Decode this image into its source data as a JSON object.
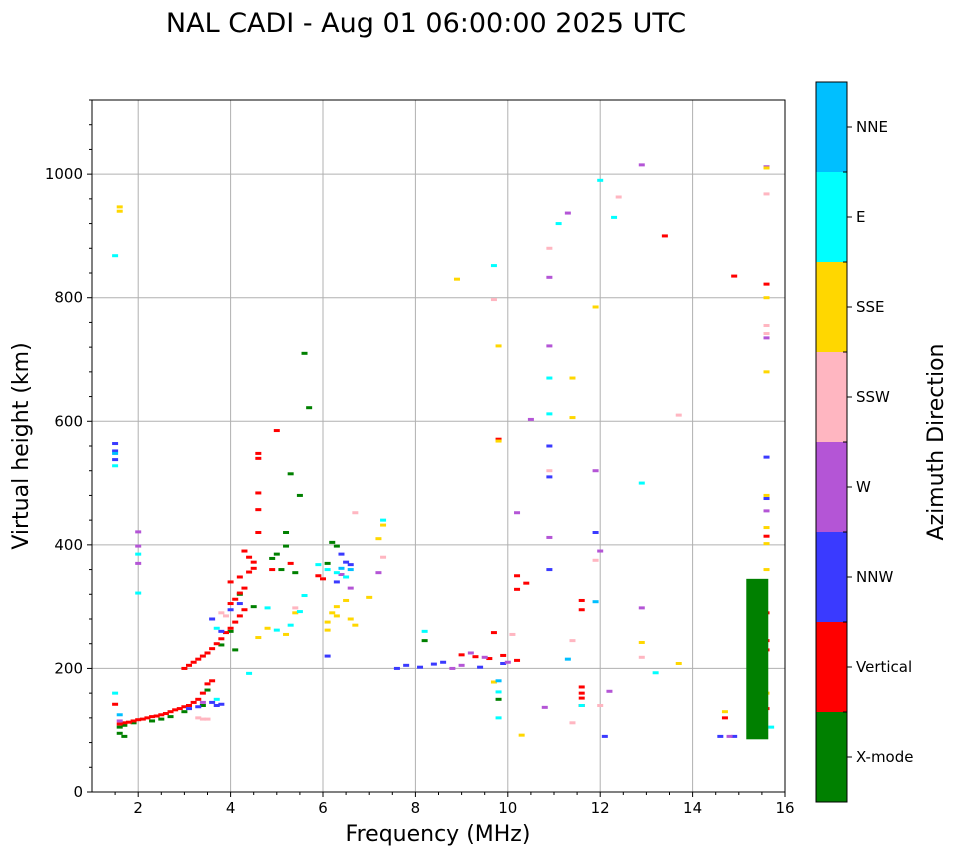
{
  "chart_data": {
    "type": "scatter",
    "title": "NAL CADI - Aug 01 06:00:00 2025 UTC",
    "xlabel": "Frequency (MHz)",
    "ylabel": "Virtual height (km)",
    "xlim": [
      1,
      16
    ],
    "ylim": [
      0,
      1120
    ],
    "xticks": [
      "2",
      "4",
      "6",
      "8",
      "10",
      "12",
      "14",
      "16"
    ],
    "yticks": [
      "0",
      "200",
      "400",
      "600",
      "800",
      "1000"
    ],
    "grid": true,
    "colorbar": {
      "label": "Azimuth Direction",
      "categories": [
        "X-mode",
        "Vertical",
        "NNW",
        "W",
        "SSW",
        "SSE",
        "E",
        "NNE"
      ],
      "colors": [
        "#008000",
        "#ff0000",
        "#3a3aff",
        "#b455d6",
        "#ffb6c1",
        "#ffd700",
        "#00ffff",
        "#00bfff"
      ]
    },
    "series": [
      {
        "name": "X-mode",
        "points": [
          [
            5.6,
            710
          ],
          [
            5.7,
            622
          ],
          [
            5.3,
            515
          ],
          [
            5.5,
            480
          ],
          [
            5.2,
            420
          ],
          [
            5.2,
            398
          ],
          [
            5.0,
            385
          ],
          [
            4.9,
            378
          ],
          [
            5.1,
            360
          ],
          [
            5.4,
            355
          ],
          [
            6.2,
            404
          ],
          [
            6.3,
            398
          ],
          [
            6.1,
            370
          ],
          [
            4.2,
            320
          ],
          [
            4.5,
            300
          ],
          [
            4.0,
            260
          ],
          [
            3.8,
            238
          ],
          [
            4.1,
            230
          ],
          [
            3.5,
            165
          ],
          [
            3.4,
            140
          ],
          [
            3.0,
            130
          ],
          [
            2.7,
            122
          ],
          [
            2.5,
            118
          ],
          [
            2.3,
            115
          ],
          [
            1.9,
            112
          ],
          [
            1.7,
            108
          ],
          [
            1.6,
            105
          ],
          [
            1.6,
            95
          ],
          [
            1.7,
            90
          ],
          [
            8.2,
            245
          ],
          [
            9.8,
            150
          ]
        ]
      },
      {
        "name": "Vertical",
        "points": [
          [
            1.5,
            142
          ],
          [
            1.6,
            110
          ],
          [
            1.7,
            112
          ],
          [
            1.8,
            113
          ],
          [
            1.9,
            115
          ],
          [
            2.0,
            117
          ],
          [
            2.1,
            118
          ],
          [
            2.2,
            120
          ],
          [
            2.3,
            122
          ],
          [
            2.4,
            123
          ],
          [
            2.5,
            125
          ],
          [
            2.6,
            127
          ],
          [
            2.7,
            130
          ],
          [
            2.8,
            133
          ],
          [
            2.9,
            135
          ],
          [
            3.0,
            138
          ],
          [
            3.1,
            140
          ],
          [
            3.2,
            145
          ],
          [
            3.3,
            150
          ],
          [
            3.4,
            160
          ],
          [
            3.5,
            175
          ],
          [
            3.6,
            180
          ],
          [
            3.0,
            200
          ],
          [
            3.1,
            205
          ],
          [
            3.2,
            210
          ],
          [
            3.3,
            215
          ],
          [
            3.4,
            220
          ],
          [
            3.5,
            225
          ],
          [
            3.6,
            232
          ],
          [
            3.7,
            240
          ],
          [
            3.8,
            248
          ],
          [
            3.9,
            258
          ],
          [
            4.0,
            265
          ],
          [
            4.1,
            275
          ],
          [
            4.2,
            285
          ],
          [
            4.3,
            295
          ],
          [
            4.0,
            305
          ],
          [
            4.1,
            312
          ],
          [
            4.2,
            322
          ],
          [
            4.3,
            330
          ],
          [
            4.0,
            340
          ],
          [
            4.2,
            348
          ],
          [
            4.4,
            356
          ],
          [
            4.5,
            362
          ],
          [
            4.5,
            372
          ],
          [
            4.4,
            380
          ],
          [
            4.3,
            390
          ],
          [
            4.6,
            420
          ],
          [
            4.6,
            457
          ],
          [
            4.6,
            484
          ],
          [
            4.6,
            540
          ],
          [
            4.6,
            548
          ],
          [
            5.0,
            585
          ],
          [
            4.9,
            360
          ],
          [
            5.3,
            370
          ],
          [
            5.9,
            350
          ],
          [
            6.0,
            345
          ],
          [
            9.0,
            222
          ],
          [
            9.3,
            219
          ],
          [
            9.6,
            216
          ],
          [
            9.9,
            221
          ],
          [
            9.7,
            258
          ],
          [
            10.2,
            328
          ],
          [
            10.4,
            338
          ],
          [
            10.2,
            350
          ],
          [
            10.2,
            213
          ],
          [
            11.6,
            140
          ],
          [
            11.6,
            152
          ],
          [
            11.6,
            160
          ],
          [
            11.6,
            170
          ],
          [
            11.6,
            295
          ],
          [
            11.6,
            310
          ],
          [
            13.4,
            900
          ],
          [
            14.9,
            835
          ],
          [
            14.7,
            120
          ],
          [
            15.6,
            822
          ],
          [
            15.6,
            414
          ],
          [
            15.6,
            290
          ],
          [
            15.6,
            245
          ],
          [
            15.6,
            230
          ],
          [
            15.6,
            135
          ],
          [
            9.8,
            571
          ]
        ]
      },
      {
        "name": "NNW",
        "points": [
          [
            1.5,
            564
          ],
          [
            1.5,
            552
          ],
          [
            1.5,
            538
          ],
          [
            4.0,
            295
          ],
          [
            4.2,
            305
          ],
          [
            3.8,
            260
          ],
          [
            3.6,
            280
          ],
          [
            3.6,
            145
          ],
          [
            3.7,
            140
          ],
          [
            3.8,
            142
          ],
          [
            3.3,
            138
          ],
          [
            3.1,
            135
          ],
          [
            6.4,
            385
          ],
          [
            6.5,
            372
          ],
          [
            6.6,
            368
          ],
          [
            6.3,
            340
          ],
          [
            7.6,
            200
          ],
          [
            7.8,
            205
          ],
          [
            8.1,
            202
          ],
          [
            8.4,
            207
          ],
          [
            8.6,
            210
          ],
          [
            9.4,
            202
          ],
          [
            9.9,
            208
          ],
          [
            10.9,
            360
          ],
          [
            10.9,
            510
          ],
          [
            10.9,
            560
          ],
          [
            11.9,
            420
          ],
          [
            12.1,
            90
          ],
          [
            14.6,
            90
          ],
          [
            14.9,
            90
          ],
          [
            15.3,
            90
          ],
          [
            15.6,
            542
          ],
          [
            15.6,
            475
          ],
          [
            6.1,
            220
          ]
        ]
      },
      {
        "name": "W",
        "points": [
          [
            2.0,
            421
          ],
          [
            2.0,
            398
          ],
          [
            2.0,
            370
          ],
          [
            1.6,
            115
          ],
          [
            3.4,
            145
          ],
          [
            6.4,
            352
          ],
          [
            6.6,
            330
          ],
          [
            7.2,
            355
          ],
          [
            8.8,
            200
          ],
          [
            9.0,
            205
          ],
          [
            9.2,
            225
          ],
          [
            9.5,
            218
          ],
          [
            10.0,
            210
          ],
          [
            10.2,
            452
          ],
          [
            10.5,
            603
          ],
          [
            10.9,
            722
          ],
          [
            10.9,
            833
          ],
          [
            10.9,
            412
          ],
          [
            10.8,
            137
          ],
          [
            11.3,
            937
          ],
          [
            11.9,
            520
          ],
          [
            12.0,
            390
          ],
          [
            12.2,
            163
          ],
          [
            12.9,
            298
          ],
          [
            12.9,
            1015
          ],
          [
            15.6,
            1012
          ],
          [
            15.6,
            735
          ],
          [
            15.6,
            455
          ],
          [
            14.8,
            90
          ]
        ]
      },
      {
        "name": "SSW",
        "points": [
          [
            3.3,
            120
          ],
          [
            3.4,
            118
          ],
          [
            3.5,
            118
          ],
          [
            3.8,
            290
          ],
          [
            3.9,
            285
          ],
          [
            5.4,
            298
          ],
          [
            6.7,
            452
          ],
          [
            7.3,
            380
          ],
          [
            10.1,
            255
          ],
          [
            10.9,
            880
          ],
          [
            10.9,
            520
          ],
          [
            11.4,
            112
          ],
          [
            11.4,
            245
          ],
          [
            11.9,
            375
          ],
          [
            12.0,
            140
          ],
          [
            12.4,
            963
          ],
          [
            12.9,
            218
          ],
          [
            13.7,
            610
          ],
          [
            15.6,
            968
          ],
          [
            15.6,
            755
          ],
          [
            15.6,
            742
          ],
          [
            9.7,
            797
          ]
        ]
      },
      {
        "name": "SSE",
        "points": [
          [
            1.6,
            947
          ],
          [
            1.6,
            940
          ],
          [
            6.1,
            275
          ],
          [
            6.1,
            262
          ],
          [
            6.2,
            290
          ],
          [
            6.3,
            300
          ],
          [
            6.3,
            285
          ],
          [
            6.5,
            310
          ],
          [
            6.6,
            280
          ],
          [
            6.7,
            270
          ],
          [
            7.0,
            315
          ],
          [
            7.2,
            410
          ],
          [
            7.3,
            432
          ],
          [
            4.8,
            265
          ],
          [
            5.2,
            255
          ],
          [
            5.4,
            290
          ],
          [
            4.6,
            250
          ],
          [
            9.8,
            722
          ],
          [
            9.8,
            568
          ],
          [
            9.7,
            178
          ],
          [
            10.3,
            92
          ],
          [
            11.4,
            670
          ],
          [
            11.4,
            606
          ],
          [
            11.9,
            785
          ],
          [
            12.9,
            242
          ],
          [
            13.7,
            208
          ],
          [
            8.9,
            830
          ],
          [
            14.7,
            130
          ],
          [
            15.6,
            1010
          ],
          [
            15.6,
            800
          ],
          [
            15.6,
            680
          ],
          [
            15.6,
            480
          ],
          [
            15.6,
            428
          ],
          [
            15.6,
            360
          ],
          [
            15.6,
            402
          ],
          [
            15.6,
            160
          ]
        ]
      },
      {
        "name": "E",
        "points": [
          [
            1.5,
            868
          ],
          [
            1.5,
            528
          ],
          [
            1.5,
            160
          ],
          [
            2.0,
            385
          ],
          [
            2.0,
            322
          ],
          [
            3.7,
            265
          ],
          [
            3.7,
            150
          ],
          [
            4.4,
            192
          ],
          [
            4.8,
            298
          ],
          [
            5.0,
            262
          ],
          [
            5.3,
            270
          ],
          [
            5.5,
            292
          ],
          [
            5.6,
            318
          ],
          [
            5.9,
            368
          ],
          [
            6.1,
            360
          ],
          [
            6.3,
            355
          ],
          [
            6.5,
            348
          ],
          [
            7.3,
            440
          ],
          [
            8.2,
            260
          ],
          [
            9.7,
            852
          ],
          [
            9.8,
            162
          ],
          [
            9.8,
            120
          ],
          [
            10.9,
            670
          ],
          [
            10.9,
            612
          ],
          [
            11.1,
            920
          ],
          [
            11.6,
            140
          ],
          [
            12.3,
            930
          ],
          [
            12.0,
            990
          ],
          [
            12.9,
            500
          ],
          [
            13.2,
            193
          ],
          [
            15.7,
            105
          ]
        ]
      },
      {
        "name": "NNE",
        "points": [
          [
            1.5,
            548
          ],
          [
            1.6,
            125
          ],
          [
            6.4,
            362
          ],
          [
            6.6,
            360
          ],
          [
            9.8,
            180
          ],
          [
            11.9,
            308
          ],
          [
            11.3,
            215
          ]
        ]
      },
      {
        "name": "X-mode bar",
        "points": [
          [
            15.4,
            345
          ],
          [
            15.4,
            300
          ],
          [
            15.4,
            250
          ],
          [
            15.4,
            200
          ],
          [
            15.4,
            150
          ],
          [
            15.4,
            95
          ]
        ]
      }
    ]
  }
}
